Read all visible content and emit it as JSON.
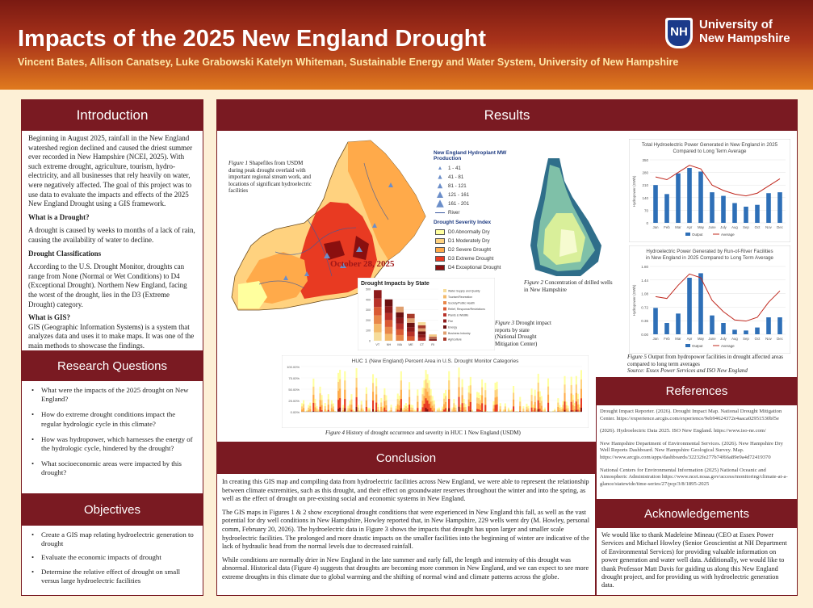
{
  "header": {
    "title": "Impacts of the 2025 New England Drought",
    "authors": "Vincent Bates, Allison Canatsey, Luke Grabowski Katelyn Whiteman, Sustainable Energy and Water System, University of New Hampshire",
    "logo_mark": "NH",
    "logo_line1": "University of",
    "logo_line2": "New Hampshire"
  },
  "introduction": {
    "heading": "Introduction",
    "p1": "Beginning in August 2025, rainfall in the New England watershed region declined and caused the driest summer ever recorded in New Hampshire (NCEI, 2025). With such extreme drought, agriculture, tourism, hydro-electricity, and all businesses that rely heavily on water, were negatively affected. The goal of this project was to use data to evaluate the impacts and effects of the 2025 New England Drought using a GIS framework.",
    "q1": "What is a Drought?",
    "p2": "A drought is caused by weeks to months of a lack of rain, causing the availability of water to decline.",
    "q2": "Drought Classifications",
    "p3": "According to the U.S. Drought Monitor, droughts can range from None (Normal or Wet Conditions) to D4 (Exceptional Drought). Northern New England, facing the worst of the drought, lies in the D3 (Extreme Drought) category.",
    "q3": "What is GIS?",
    "p4": "GIS (Geographic Information Systems) is a system that analyzes data and uses it to make maps. It was one of the main methods to showcase the findings."
  },
  "research_questions": {
    "heading": "Research Questions",
    "items": [
      "What were the impacts of the 2025 drought on New England?",
      "How do extreme drought conditions impact the regular hydrologic cycle in this climate?",
      "How was hydropower, which harnesses the energy of the hydrologic cycle, hindered by the drought?",
      "What socioeconomic areas were impacted by this drought?"
    ]
  },
  "objectives": {
    "heading": "Objectives",
    "items": [
      "Create a GIS map relating hydroelectric generation to drought",
      "Evaluate the economic impacts of drought",
      "Determine the relative effect of drought on small versus large hydroelectric facilities"
    ]
  },
  "results": {
    "heading": "Results",
    "fig1_label": "Figure 1",
    "fig1_caption": " Shapefiles from USDM during peak drought overlaid with important regional stream work, and locations of significant hydroelectric facilities",
    "map_date": "October 28, 2025",
    "legend_title1": "New England Hydroplant MW Production",
    "legend_mw": [
      "1 - 41",
      "41 - 81",
      "81 - 121",
      "121 - 161",
      "161 - 201"
    ],
    "legend_river": "River",
    "legend_title2": "Drought Severity Index",
    "legend_drought": [
      {
        "label": "D0 Abnormally Dry",
        "color": "#ffff9e"
      },
      {
        "label": "D1 Moderately Dry",
        "color": "#ffd27f"
      },
      {
        "label": "D2 Severe Drought",
        "color": "#ffaa4a"
      },
      {
        "label": "D3 Extreme Drought",
        "color": "#e83a22"
      },
      {
        "label": "D4 Exceptional Drought",
        "color": "#8a0f0f"
      }
    ],
    "fig2_label": "Figure 2",
    "fig2_caption": " Concentration of drilled wells in New Hampshire",
    "impacts_title": "Drought Impacts by State",
    "fig3_label": "Figure 3",
    "fig3_caption": " Drought impact reports by state (National Drought Mitigation Center)",
    "huc_title": "HUC 1 (New England) Percent Area in U.S. Drought Monitor Categories",
    "fig4_label": "Figure 4",
    "fig4_caption": " History of drought occurrence and severity in HUC 1 New England (USDM)",
    "chart1_title": "Total Hydroelectric Power Generated in New England in 2025 Compared to Long Term Average",
    "chart2_title": "Hydroelectric Power Generated by Run-of-River Facilities in New England in 2025 Compared to Long Term Average",
    "fig5_label": "Figure 5",
    "fig5_caption": " Output from hydropower facilities in drought affected areas compared to long term averages",
    "fig5_source": "Source: Essex Power Services and ISO New England"
  },
  "chart_data": [
    {
      "type": "bar",
      "title": "Total Hydroelectric Power Generated in New England in 2025 Compared to Long Term Average",
      "ylabel": "Hydropower (GWh)",
      "categories": [
        "Jan",
        "Feb",
        "Mar",
        "Apr",
        "May",
        "June",
        "July",
        "Aug",
        "Sep",
        "Oct",
        "Nov",
        "Dec"
      ],
      "ylim": [
        0,
        350
      ],
      "series": [
        {
          "name": "Output",
          "values": [
            210,
            160,
            275,
            305,
            285,
            170,
            150,
            110,
            90,
            100,
            165,
            170
          ]
        },
        {
          "name": "Average",
          "values": [
            255,
            240,
            280,
            320,
            300,
            210,
            180,
            160,
            150,
            165,
            205,
            245
          ]
        }
      ]
    },
    {
      "type": "bar",
      "title": "Hydroelectric Power Generated by Run-of-River Facilities in New England in 2025 Compared to Long Term Average",
      "ylabel": "Hydropower (GWh)",
      "categories": [
        "Jan",
        "Feb",
        "Mar",
        "Apr",
        "May",
        "June",
        "July",
        "Aug",
        "Sep",
        "Oct",
        "Nov",
        "Dec"
      ],
      "ylim": [
        0,
        1.8
      ],
      "series": [
        {
          "name": "Output",
          "values": [
            0.7,
            0.3,
            0.55,
            1.5,
            1.62,
            0.5,
            0.3,
            0.12,
            0.1,
            0.18,
            0.45,
            0.45
          ]
        },
        {
          "name": "Average",
          "values": [
            1.0,
            0.95,
            1.3,
            1.6,
            1.5,
            0.9,
            0.6,
            0.38,
            0.35,
            0.45,
            0.85,
            1.15
          ]
        }
      ]
    },
    {
      "type": "bar",
      "title": "Drought Impacts by State",
      "categories": [
        "VT",
        "NH",
        "MA",
        "ME",
        "CT",
        "RI"
      ],
      "values": [
        490,
        400,
        330,
        260,
        180,
        60
      ],
      "ylim": [
        0,
        500
      ],
      "legend": [
        "Water Supply and Quality",
        "Tourism/Recreation",
        "Society/Public Health",
        "Relief, Response/Restrictions",
        "Plants & Wildlife",
        "Fire",
        "Energy",
        "Business Industry",
        "Agriculture"
      ]
    }
  ],
  "conclusion": {
    "heading": "Conclusion",
    "p1": "In creating this GIS map and compiling data from hydroelectric facilities across New England, we were able to represent the relationship between climate extremities, such as this drought, and their effect on groundwater reserves throughout the winter and into the spring, as well as the effect of drought on pre-existing social and economic systems in New England.",
    "p2": "The GIS maps in Figures 1 & 2 show exceptional drought conditions that were experienced in New England this fall, as well as the vast potential for dry well conditions in New Hampshire, Howley reported that, in New Hampshire, 229 wells went dry (M. Howley, personal comm, February 20, 2026). The hydroelectric data in Figure 3 shows the impacts that drought has upon larger and smaller scale hydroelectric facilities. The prolonged and more drastic impacts on the smaller facilities into the beginning of winter are indicative of the lack of hydraulic head from the normal levels due to decreased rainfall.",
    "p3": "While conditions are normally drier in New England in the late summer and early fall, the length and intensity of this drought was abnormal.  Historical data (Figure 4) suggests that droughts are becoming more common in New England, and we can expect to see more extreme droughts in this climate due to global warming and the shifting of normal wind and climate patterns across the globe."
  },
  "references": {
    "heading": "References",
    "items": [
      "Drought Impact Reporter. (2026). Drought Impact Map. National Drought Mitigation Center. https://experience.arcgis.com/experience/9eb94624372e4aaca02951530bf5e",
      "(2026). Hydroelectric Data 2025. ISO New England. https://www.iso-ne.com/",
      "New Hampshire Department of Environmental Services. (2026). New Hampshire Dry Well Reports Dashboard. New Hampshire Geological Survey. Map. https://www.arcgis.com/apps/dashboards/32232fe277b74f66a89e9a4d72419370",
      "National Centers for Environmental Information (2025) National Oceanic and Atmospheric Administration https://www.ncei.noaa.gov/access/monitoring/climate-at-a-glance/statewide/time-series/27/pcp/3/8/1895-2025"
    ]
  },
  "acknowledgements": {
    "heading": "Acknowledgements",
    "text": "We would like to thank Madeleine Mineau (CEO at Essex Power Services and Michael Howley (Senior Geoscientist at NH Department of Environmental Services) for providing valuable information on power generation and water well data. Additionally, we would like to thank Professor Matt Davis for guiding us along this New England drought project, and for providing us with hydroelectric generation data."
  }
}
